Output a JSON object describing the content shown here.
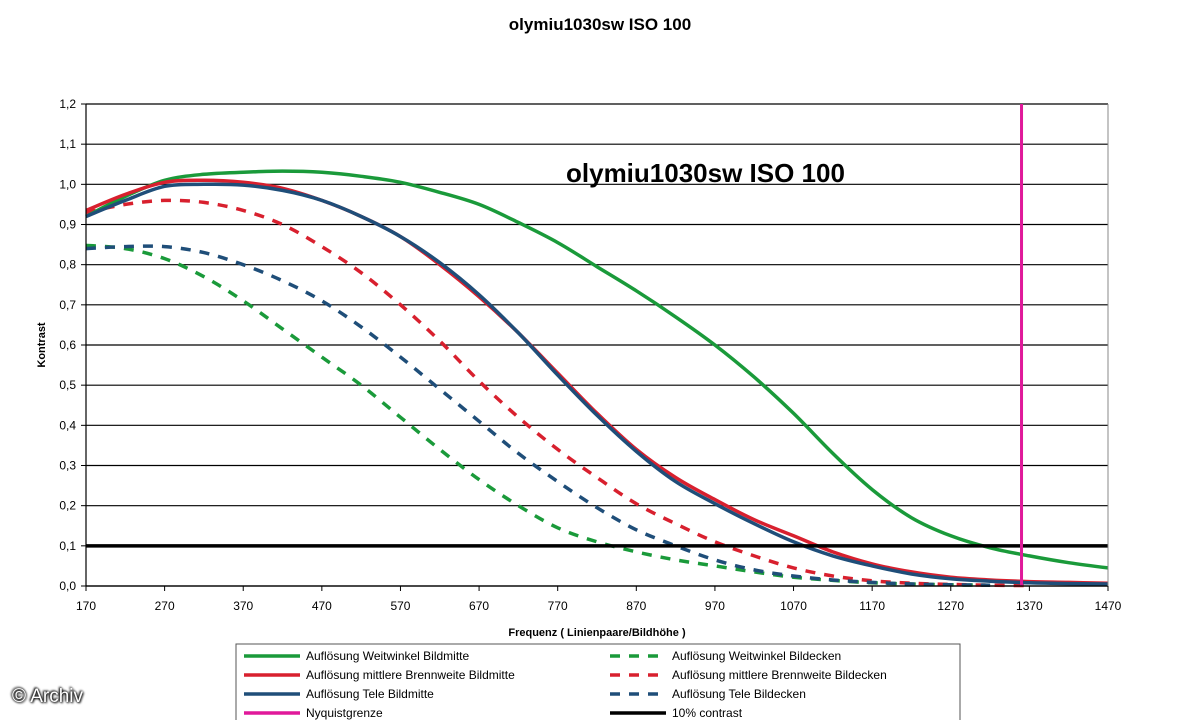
{
  "chart_data": {
    "type": "line",
    "title": "olymiu1030sw ISO 100",
    "annotation": "olymiu1030sw ISO 100",
    "xlabel": "Frequenz ( Linienpaare/Bildhöhe )",
    "ylabel": "Kontrast",
    "xlim": [
      170,
      1470
    ],
    "ylim": [
      0,
      1.2
    ],
    "x_ticks": [
      "170",
      "270",
      "370",
      "470",
      "570",
      "670",
      "770",
      "870",
      "970",
      "1070",
      "1170",
      "1270",
      "1370",
      "1470"
    ],
    "y_ticks": [
      "0,0",
      "0,1",
      "0,2",
      "0,3",
      "0,4",
      "0,5",
      "0,6",
      "0,7",
      "0,8",
      "0,9",
      "1,0",
      "1,1",
      "1,2"
    ],
    "grid": "horizontal",
    "colors": {
      "green": "#1a9a3a",
      "red": "#d8202e",
      "blue": "#1f4e79",
      "magenta": "#e0199a",
      "black": "#000000"
    },
    "series": [
      {
        "name": "Auflösung Weitwinkel Bildmitte",
        "color": "green",
        "style": "solid",
        "x": [
          170,
          220,
          270,
          320,
          370,
          420,
          470,
          520,
          570,
          620,
          670,
          720,
          770,
          820,
          870,
          920,
          970,
          1020,
          1070,
          1120,
          1170,
          1220,
          1270,
          1320,
          1370,
          1420,
          1470
        ],
        "y": [
          0.92,
          0.97,
          1.01,
          1.025,
          1.03,
          1.033,
          1.03,
          1.02,
          1.005,
          0.98,
          0.95,
          0.905,
          0.855,
          0.795,
          0.735,
          0.67,
          0.6,
          0.52,
          0.43,
          0.33,
          0.24,
          0.17,
          0.125,
          0.095,
          0.075,
          0.058,
          0.045
        ]
      },
      {
        "name": "Auflösung mittlere Brennweite Bildmitte",
        "color": "red",
        "style": "solid",
        "x": [
          170,
          220,
          270,
          320,
          370,
          420,
          470,
          520,
          570,
          620,
          670,
          720,
          770,
          820,
          870,
          920,
          970,
          1020,
          1070,
          1120,
          1170,
          1220,
          1270,
          1320,
          1370,
          1420,
          1470
        ],
        "y": [
          0.935,
          0.975,
          1.005,
          1.01,
          1.005,
          0.99,
          0.96,
          0.92,
          0.87,
          0.8,
          0.72,
          0.63,
          0.53,
          0.43,
          0.34,
          0.27,
          0.215,
          0.165,
          0.125,
          0.085,
          0.055,
          0.035,
          0.022,
          0.015,
          0.011,
          0.009,
          0.007
        ]
      },
      {
        "name": "Auflösung Tele Bildmitte",
        "color": "blue",
        "style": "solid",
        "x": [
          170,
          220,
          270,
          320,
          370,
          420,
          470,
          520,
          570,
          620,
          670,
          720,
          770,
          820,
          870,
          920,
          970,
          1020,
          1070,
          1120,
          1170,
          1220,
          1270,
          1320,
          1370,
          1420,
          1470
        ],
        "y": [
          0.92,
          0.96,
          0.995,
          1.0,
          0.998,
          0.985,
          0.96,
          0.92,
          0.87,
          0.805,
          0.725,
          0.63,
          0.525,
          0.425,
          0.335,
          0.26,
          0.205,
          0.155,
          0.11,
          0.075,
          0.05,
          0.03,
          0.018,
          0.012,
          0.008,
          0.006,
          0.005
        ]
      },
      {
        "name": "Auflösung Weitwinkel Bildecken",
        "color": "green",
        "style": "dashed",
        "x": [
          170,
          220,
          270,
          320,
          370,
          420,
          470,
          520,
          570,
          620,
          670,
          720,
          770,
          820,
          870,
          920,
          970,
          1020,
          1070,
          1120,
          1170,
          1220,
          1270,
          1320
        ],
        "y": [
          0.848,
          0.84,
          0.815,
          0.77,
          0.71,
          0.64,
          0.57,
          0.5,
          0.42,
          0.34,
          0.265,
          0.2,
          0.145,
          0.11,
          0.085,
          0.065,
          0.05,
          0.035,
          0.022,
          0.014,
          0.008,
          0.005,
          0.003,
          0.002
        ]
      },
      {
        "name": "Auflösung mittlere Brennweite Bildecken",
        "color": "red",
        "style": "dashed",
        "x": [
          170,
          220,
          270,
          320,
          370,
          420,
          470,
          520,
          570,
          620,
          670,
          720,
          770,
          820,
          870,
          920,
          970,
          1020,
          1070,
          1120,
          1170,
          1220,
          1270,
          1320,
          1370
        ],
        "y": [
          0.93,
          0.95,
          0.96,
          0.955,
          0.935,
          0.9,
          0.845,
          0.78,
          0.7,
          0.61,
          0.51,
          0.42,
          0.34,
          0.27,
          0.205,
          0.155,
          0.11,
          0.075,
          0.045,
          0.025,
          0.013,
          0.007,
          0.004,
          0.002,
          0.001
        ]
      },
      {
        "name": "Auflösung Tele Bildecken",
        "color": "blue",
        "style": "dashed",
        "x": [
          170,
          220,
          270,
          320,
          370,
          420,
          470,
          520,
          570,
          620,
          670,
          720,
          770,
          820,
          870,
          920,
          970,
          1020,
          1070,
          1120,
          1170,
          1220,
          1270,
          1320
        ],
        "y": [
          0.84,
          0.845,
          0.845,
          0.83,
          0.8,
          0.76,
          0.71,
          0.645,
          0.57,
          0.49,
          0.41,
          0.33,
          0.26,
          0.195,
          0.14,
          0.1,
          0.065,
          0.04,
          0.025,
          0.015,
          0.009,
          0.005,
          0.003,
          0.002
        ]
      },
      {
        "name": "Nyquistgrenze",
        "color": "magenta",
        "style": "vline",
        "x": [
          1360,
          1360
        ],
        "y": [
          0,
          1.2
        ]
      },
      {
        "name": "10% contrast",
        "color": "black",
        "style": "hline",
        "x": [
          170,
          1470
        ],
        "y": [
          0.1,
          0.1
        ]
      }
    ]
  },
  "watermark": "© Archiv"
}
